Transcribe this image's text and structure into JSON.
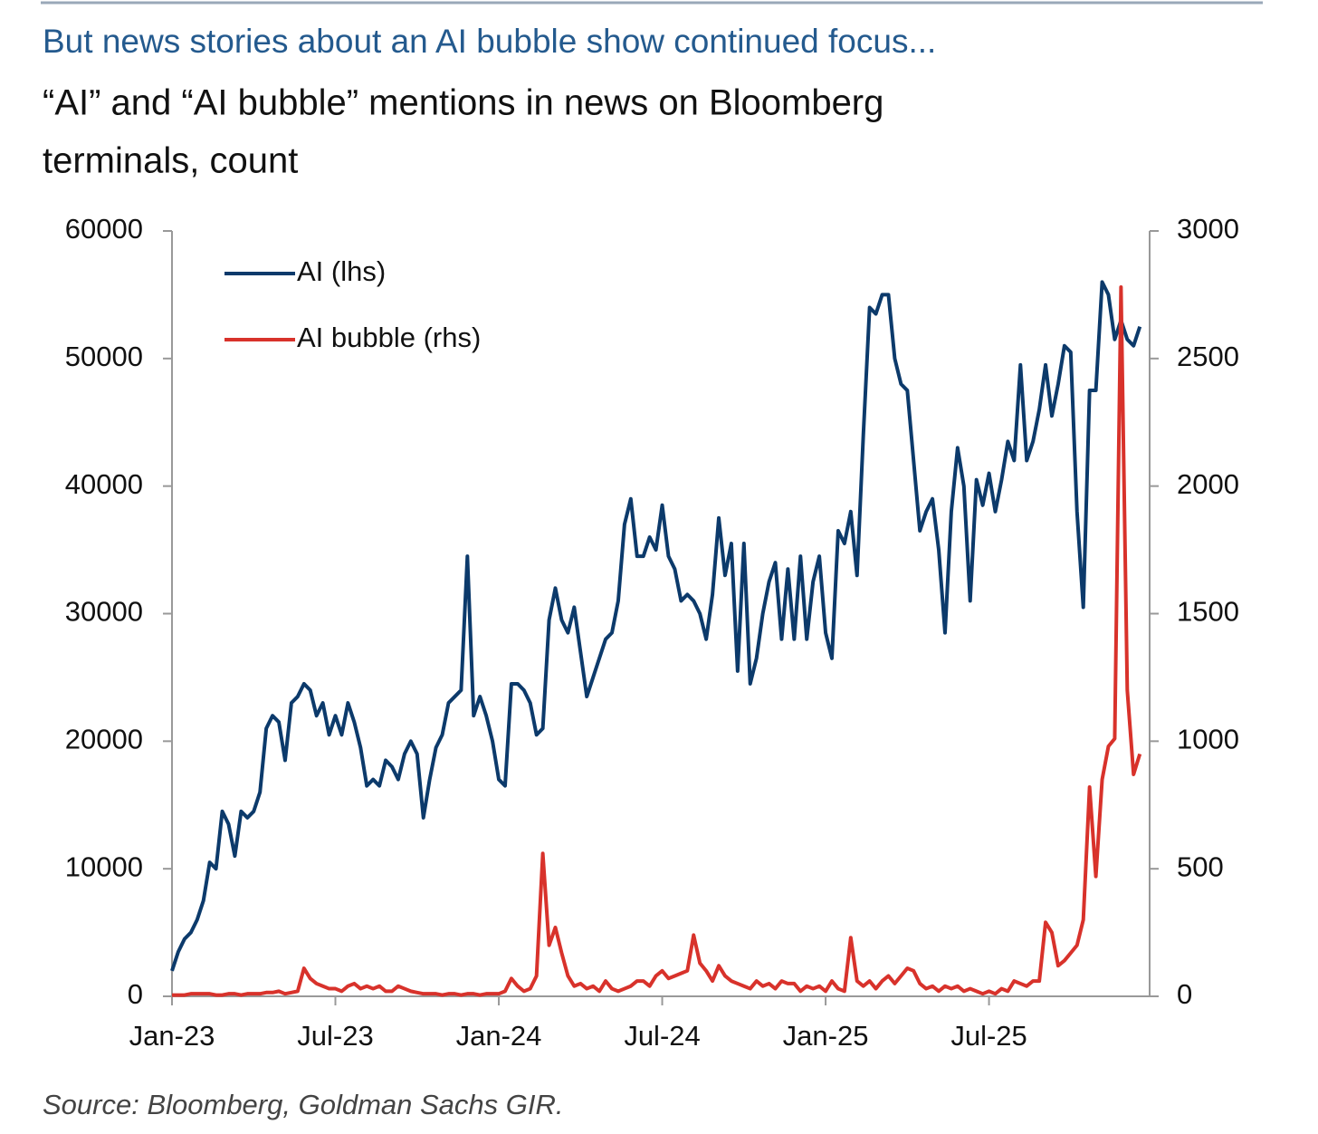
{
  "chart_data": {
    "type": "line",
    "title": "But news stories about an AI bubble show continued focus...",
    "subtitle": [
      "“AI” and “AI bubble” mentions in news on Bloomberg",
      "terminals, count"
    ],
    "source": "Source: Bloomberg, Goldman Sachs GIR.",
    "legend": "upper left",
    "categories": [
      "Jan-23",
      null,
      null,
      null,
      null,
      null,
      null,
      null,
      null,
      null,
      null,
      null,
      null,
      null,
      null,
      null,
      null,
      null,
      null,
      null,
      null,
      null,
      null,
      null,
      null,
      null,
      "Jul-23",
      null,
      null,
      null,
      null,
      null,
      null,
      null,
      null,
      null,
      null,
      null,
      null,
      null,
      null,
      null,
      null,
      null,
      null,
      null,
      null,
      null,
      null,
      null,
      null,
      null,
      "Jan-24",
      null,
      null,
      null,
      null,
      null,
      null,
      null,
      null,
      null,
      null,
      null,
      null,
      null,
      null,
      null,
      null,
      null,
      null,
      null,
      null,
      null,
      null,
      null,
      null,
      null,
      "Jul-24",
      null,
      null,
      null,
      null,
      null,
      null,
      null,
      null,
      null,
      null,
      null,
      null,
      null,
      null,
      null,
      null,
      null,
      null,
      null,
      null,
      null,
      null,
      null,
      null,
      null,
      "Jan-25",
      null,
      null,
      null,
      null,
      null,
      null,
      null,
      null,
      null,
      null,
      null,
      null,
      null,
      null,
      null,
      null,
      null,
      null,
      null,
      null,
      null,
      null,
      null,
      null,
      null,
      "Jul-25",
      null,
      null,
      null,
      null,
      null,
      null,
      null,
      null,
      null,
      null,
      null,
      null,
      null,
      null,
      null,
      null,
      null,
      null,
      null,
      null,
      null,
      null,
      null,
      null
    ],
    "series": [
      {
        "name": "AI (lhs)",
        "color": "#0c3a6b",
        "axis": "y",
        "values": [
          2000,
          3500,
          4500,
          5000,
          6000,
          7500,
          10500,
          10000,
          14500,
          13500,
          11000,
          14500,
          14000,
          14500,
          16000,
          21000,
          22000,
          21500,
          18500,
          23000,
          23500,
          24500,
          24000,
          22000,
          23000,
          20500,
          22000,
          20500,
          23000,
          21500,
          19500,
          16500,
          17000,
          16500,
          18500,
          18000,
          17000,
          19000,
          20000,
          19000,
          14000,
          17000,
          19500,
          20500,
          23000,
          23500,
          24000,
          34500,
          22000,
          23500,
          22000,
          20000,
          17000,
          16500,
          24500,
          24500,
          24000,
          23000,
          20500,
          21000,
          29500,
          32000,
          29500,
          28500,
          30500,
          27000,
          23500,
          25000,
          26500,
          28000,
          28500,
          31000,
          37000,
          39000,
          34500,
          34500,
          36000,
          35000,
          38500,
          34500,
          33500,
          31000,
          31500,
          31000,
          30000,
          28000,
          31500,
          37500,
          33000,
          35500,
          25500,
          35500,
          24500,
          26500,
          30000,
          32500,
          34000,
          28000,
          33500,
          28000,
          34500,
          28000,
          32500,
          34500,
          28500,
          26500,
          36500,
          35500,
          38000,
          33000,
          44000,
          54000,
          53500,
          55000,
          55000,
          50000,
          48000,
          47500,
          42000,
          36500,
          38000,
          39000,
          35000,
          28500,
          38000,
          43000,
          40000,
          31000,
          40500,
          38500,
          41000,
          38000,
          40500,
          43500,
          42000,
          49500,
          42000,
          43500,
          46000,
          49500,
          45500,
          48000,
          51000,
          50500,
          38000,
          30500,
          47500,
          47500,
          56000,
          55000,
          51500,
          53000,
          51500,
          51000,
          52500
        ]
      },
      {
        "name": "AI bubble (rhs)",
        "color": "#d8322b",
        "axis": "y2",
        "values": [
          5,
          5,
          5,
          10,
          10,
          10,
          10,
          5,
          5,
          10,
          10,
          5,
          10,
          10,
          10,
          15,
          15,
          20,
          10,
          15,
          20,
          110,
          70,
          50,
          40,
          30,
          30,
          20,
          40,
          50,
          30,
          40,
          30,
          40,
          20,
          20,
          40,
          30,
          20,
          15,
          10,
          10,
          10,
          5,
          10,
          10,
          5,
          10,
          10,
          5,
          10,
          10,
          10,
          20,
          70,
          40,
          20,
          30,
          80,
          560,
          200,
          270,
          170,
          80,
          40,
          50,
          30,
          40,
          20,
          60,
          30,
          20,
          30,
          40,
          60,
          60,
          40,
          80,
          100,
          70,
          80,
          90,
          100,
          240,
          130,
          100,
          60,
          120,
          80,
          60,
          50,
          40,
          30,
          60,
          40,
          50,
          30,
          60,
          50,
          50,
          20,
          40,
          30,
          40,
          20,
          60,
          30,
          20,
          230,
          60,
          40,
          60,
          30,
          60,
          80,
          50,
          80,
          110,
          100,
          50,
          30,
          40,
          20,
          40,
          30,
          40,
          20,
          30,
          20,
          10,
          20,
          10,
          30,
          20,
          60,
          50,
          40,
          60,
          60,
          290,
          250,
          120,
          140,
          170,
          200,
          300,
          820,
          470,
          850,
          980,
          1010,
          2780,
          1200,
          870,
          950
        ]
      }
    ],
    "ylim": [
      0,
      60000
    ],
    "yticks": [
      0,
      10000,
      20000,
      30000,
      40000,
      50000,
      60000
    ],
    "y2lim": [
      0,
      3000
    ],
    "y2ticks": [
      0,
      500,
      1000,
      1500,
      2000,
      2500,
      3000
    ]
  }
}
